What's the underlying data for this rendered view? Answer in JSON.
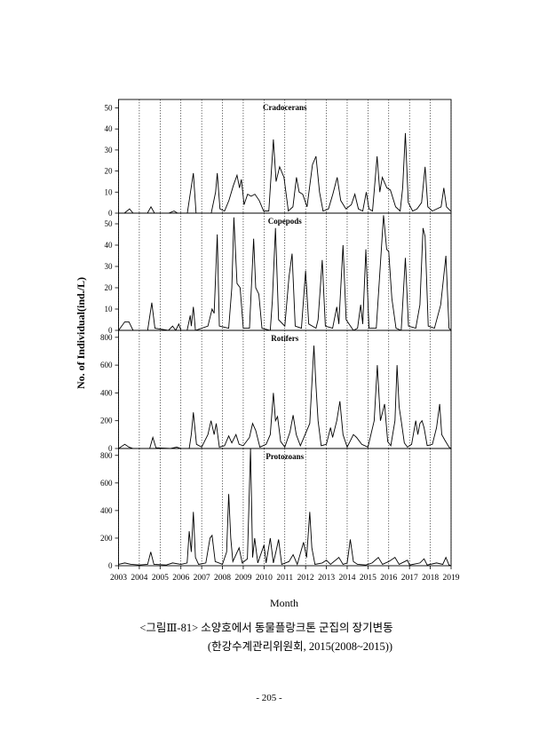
{
  "chart_data": [
    {
      "type": "line",
      "title": "Cradocerans",
      "color": "#000000",
      "xgrid": "dotted",
      "xlim": [
        2003,
        2019
      ],
      "xticks": [
        2003,
        2004,
        2005,
        2006,
        2007,
        2008,
        2009,
        2010,
        2011,
        2012,
        2013,
        2014,
        2015,
        2016,
        2017,
        2018,
        2019
      ],
      "ylim": [
        0,
        54
      ],
      "yticks": [
        0,
        10,
        20,
        30,
        40,
        50
      ],
      "x": [
        2003.0,
        2003.28,
        2003.53,
        2003.7,
        2004.39,
        2004.56,
        2004.73,
        2005.41,
        2005.67,
        2005.84,
        2006.31,
        2006.43,
        2006.6,
        2006.73,
        2007.46,
        2007.67,
        2007.75,
        2007.88,
        2008.1,
        2008.31,
        2008.52,
        2008.7,
        2008.82,
        2008.91,
        2009.04,
        2009.21,
        2009.38,
        2009.56,
        2009.77,
        2009.98,
        2010.23,
        2010.45,
        2010.58,
        2010.75,
        2010.96,
        2011.17,
        2011.39,
        2011.56,
        2011.69,
        2011.86,
        2012.07,
        2012.33,
        2012.5,
        2012.67,
        2012.84,
        2013.1,
        2013.31,
        2013.52,
        2013.69,
        2013.94,
        2014.2,
        2014.37,
        2014.54,
        2014.75,
        2014.92,
        2015.05,
        2015.22,
        2015.44,
        2015.57,
        2015.69,
        2015.91,
        2016.08,
        2016.33,
        2016.55,
        2016.67,
        2016.8,
        2016.94,
        2017.15,
        2017.36,
        2017.58,
        2017.75,
        2017.88,
        2018.1,
        2018.31,
        2018.52,
        2018.65,
        2018.78,
        2018.98
      ],
      "values": [
        0,
        0,
        2,
        0,
        0,
        3,
        0,
        0,
        1,
        0,
        0,
        8,
        19,
        0,
        0,
        10,
        19,
        2,
        1,
        6,
        13,
        18,
        12,
        16,
        4,
        9,
        8,
        9,
        6,
        1,
        1,
        35,
        15,
        22,
        17,
        1,
        3,
        17,
        10,
        9,
        3,
        23,
        27,
        10,
        1,
        2,
        9,
        17,
        6,
        2,
        4,
        9,
        2,
        1,
        10,
        2,
        1,
        27,
        10,
        17,
        12,
        11,
        3,
        1,
        12,
        38,
        5,
        1,
        2,
        5,
        22,
        3,
        1,
        2,
        3,
        12,
        3,
        1
      ]
    },
    {
      "type": "line",
      "title": "Copepods",
      "color": "#000000",
      "xgrid": "dotted",
      "xlim": [
        2003,
        2019
      ],
      "xticks": [
        2003,
        2004,
        2005,
        2006,
        2007,
        2008,
        2009,
        2010,
        2011,
        2012,
        2013,
        2014,
        2015,
        2016,
        2017,
        2018,
        2019
      ],
      "ylim": [
        0,
        55
      ],
      "yticks": [
        0,
        10,
        20,
        30,
        40,
        50
      ],
      "x": [
        2003.0,
        2003.3,
        2003.5,
        2003.7,
        2004.4,
        2004.6,
        2004.75,
        2005.4,
        2005.6,
        2005.75,
        2005.9,
        2006.0,
        2006.3,
        2006.45,
        2006.5,
        2006.6,
        2006.7,
        2007.3,
        2007.5,
        2007.6,
        2007.75,
        2007.85,
        2008.3,
        2008.45,
        2008.55,
        2008.7,
        2008.85,
        2009.0,
        2009.3,
        2009.5,
        2009.6,
        2009.75,
        2009.9,
        2010.3,
        2010.4,
        2010.55,
        2010.7,
        2011.0,
        2011.2,
        2011.35,
        2011.5,
        2011.8,
        2012.0,
        2012.15,
        2012.5,
        2012.6,
        2012.8,
        2012.95,
        2013.3,
        2013.5,
        2013.6,
        2013.8,
        2013.95,
        2014.3,
        2014.5,
        2014.65,
        2014.75,
        2014.9,
        2015.05,
        2015.4,
        2015.75,
        2015.9,
        2016.0,
        2016.15,
        2016.35,
        2016.6,
        2016.8,
        2016.95,
        2017.3,
        2017.5,
        2017.65,
        2017.75,
        2017.9,
        2018.2,
        2018.5,
        2018.75,
        2018.9,
        2019.0
      ],
      "values": [
        0,
        4,
        4,
        0,
        0,
        13,
        1,
        0,
        2,
        0,
        3,
        0,
        0,
        7,
        2,
        11,
        0,
        2,
        10,
        8,
        45,
        2,
        1,
        20,
        53,
        22,
        20,
        1,
        1,
        43,
        20,
        17,
        1,
        0,
        14,
        48,
        5,
        2,
        25,
        36,
        2,
        1,
        28,
        3,
        1,
        5,
        33,
        2,
        1,
        11,
        3,
        40,
        5,
        0,
        1,
        12,
        3,
        38,
        1,
        1,
        54,
        38,
        37,
        15,
        1,
        0,
        34,
        2,
        1,
        12,
        48,
        44,
        2,
        1,
        12,
        35,
        1,
        0
      ]
    },
    {
      "type": "line",
      "title": "Rotifers",
      "color": "#000000",
      "xgrid": "dotted",
      "xlim": [
        2003,
        2019
      ],
      "xticks": [
        2003,
        2004,
        2005,
        2006,
        2007,
        2008,
        2009,
        2010,
        2011,
        2012,
        2013,
        2014,
        2015,
        2016,
        2017,
        2018,
        2019
      ],
      "ylim": [
        0,
        850
      ],
      "yticks": [
        0,
        200,
        400,
        600,
        800
      ],
      "x": [
        2003.0,
        2003.3,
        2003.5,
        2003.7,
        2004.5,
        2004.65,
        2004.8,
        2005.5,
        2005.8,
        2006.0,
        2006.4,
        2006.5,
        2006.6,
        2006.75,
        2007.0,
        2007.3,
        2007.45,
        2007.6,
        2007.7,
        2007.85,
        2008.1,
        2008.3,
        2008.45,
        2008.65,
        2008.8,
        2009.0,
        2009.3,
        2009.45,
        2009.6,
        2009.8,
        2010.1,
        2010.3,
        2010.45,
        2010.55,
        2010.65,
        2010.8,
        2011.0,
        2011.25,
        2011.4,
        2011.55,
        2011.75,
        2012.2,
        2012.4,
        2012.5,
        2012.6,
        2012.75,
        2013.0,
        2013.2,
        2013.3,
        2013.5,
        2013.65,
        2013.8,
        2014.0,
        2014.3,
        2014.45,
        2014.7,
        2015.0,
        2015.3,
        2015.45,
        2015.6,
        2015.8,
        2015.95,
        2016.1,
        2016.3,
        2016.4,
        2016.5,
        2016.6,
        2016.75,
        2016.9,
        2017.1,
        2017.3,
        2017.4,
        2017.5,
        2017.6,
        2017.7,
        2017.85,
        2018.1,
        2018.3,
        2018.45,
        2018.55,
        2018.7,
        2018.9,
        2019.0
      ],
      "values": [
        0,
        30,
        10,
        0,
        0,
        80,
        5,
        0,
        10,
        0,
        0,
        100,
        260,
        30,
        10,
        100,
        200,
        100,
        180,
        10,
        20,
        90,
        40,
        100,
        30,
        20,
        80,
        180,
        130,
        10,
        30,
        100,
        400,
        200,
        230,
        50,
        10,
        120,
        240,
        100,
        20,
        180,
        740,
        450,
        200,
        20,
        30,
        150,
        80,
        200,
        340,
        100,
        10,
        100,
        80,
        30,
        10,
        200,
        600,
        200,
        320,
        50,
        20,
        200,
        600,
        300,
        200,
        40,
        10,
        30,
        200,
        100,
        180,
        200,
        150,
        20,
        30,
        150,
        320,
        100,
        60,
        10,
        0
      ]
    },
    {
      "type": "line",
      "title": "Protozoans",
      "color": "#000000",
      "xgrid": "dotted",
      "xlim": [
        2003,
        2019
      ],
      "xticks": [
        2003,
        2004,
        2005,
        2006,
        2007,
        2008,
        2009,
        2010,
        2011,
        2012,
        2013,
        2014,
        2015,
        2016,
        2017,
        2018,
        2019
      ],
      "ylim": [
        0,
        850
      ],
      "yticks": [
        0,
        200,
        400,
        600,
        800
      ],
      "x": [
        2003.0,
        2003.3,
        2003.6,
        2004.0,
        2004.4,
        2004.55,
        2004.7,
        2005.3,
        2005.6,
        2006.0,
        2006.3,
        2006.4,
        2006.5,
        2006.6,
        2006.7,
        2006.85,
        2007.2,
        2007.4,
        2007.5,
        2007.65,
        2008.0,
        2008.2,
        2008.3,
        2008.4,
        2008.5,
        2008.8,
        2008.95,
        2009.2,
        2009.35,
        2009.45,
        2009.55,
        2009.7,
        2010.0,
        2010.1,
        2010.3,
        2010.45,
        2010.6,
        2010.7,
        2010.85,
        2011.2,
        2011.4,
        2011.6,
        2011.9,
        2012.05,
        2012.2,
        2012.3,
        2012.45,
        2012.8,
        2013.0,
        2013.2,
        2013.6,
        2013.8,
        2014.0,
        2014.15,
        2014.3,
        2014.5,
        2014.9,
        2015.2,
        2015.5,
        2015.7,
        2016.0,
        2016.3,
        2016.5,
        2016.9,
        2017.0,
        2017.5,
        2017.7,
        2017.85,
        2018.3,
        2018.6,
        2018.75,
        2018.9,
        2019.0
      ],
      "values": [
        10,
        20,
        10,
        5,
        10,
        100,
        10,
        5,
        20,
        10,
        20,
        250,
        100,
        390,
        60,
        10,
        20,
        200,
        220,
        30,
        10,
        100,
        520,
        200,
        30,
        130,
        20,
        50,
        850,
        60,
        200,
        20,
        150,
        20,
        200,
        20,
        120,
        190,
        10,
        30,
        80,
        10,
        170,
        60,
        390,
        130,
        10,
        20,
        40,
        10,
        60,
        10,
        20,
        190,
        30,
        10,
        5,
        20,
        60,
        10,
        30,
        60,
        10,
        40,
        5,
        20,
        50,
        5,
        20,
        10,
        60,
        5,
        0
      ]
    }
  ],
  "figure": {
    "y_label": "No. of Individual(ind./L)",
    "x_label": "Month"
  },
  "caption": {
    "line1": "<그림Ⅲ-81> 소양호에서 동물플랑크톤 군집의 장기변동",
    "line2": "(한강수계관리위원회, 2015(2008~2015))"
  },
  "page_number": "- 205 -"
}
